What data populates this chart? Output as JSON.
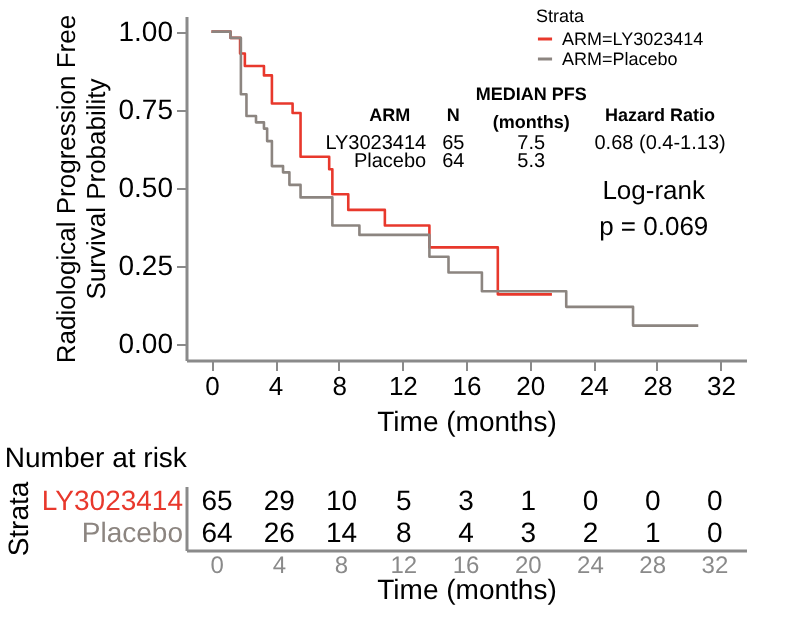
{
  "chart_data": [
    {
      "type": "step",
      "xlabel": "Time (months)",
      "ylabel": "Radiological Progression Free\nSurvival Probability",
      "legend_title": "Strata",
      "legend": "top right",
      "xlim": [
        -1.6,
        33.6
      ],
      "xticks": [
        0,
        4,
        8,
        12,
        16,
        20,
        24,
        28,
        32
      ],
      "ylim": [
        -0.05,
        1.05
      ],
      "yticks": [
        {
          "value": 0,
          "label": "0.00"
        },
        {
          "value": 0.25,
          "label": "0.25"
        },
        {
          "value": 0.5,
          "label": "0.50"
        },
        {
          "value": 0.75,
          "label": "0.75"
        },
        {
          "value": 1,
          "label": "1.00"
        }
      ],
      "series": [
        {
          "name": "ARM=LY3023414",
          "color": "#e8382c",
          "x": [
            0,
            1.2,
            1.8,
            2.1,
            3.3,
            3.8,
            5.1,
            5.6,
            7.4,
            7.6,
            8.6,
            10.9,
            13.7,
            18.0,
            21.4
          ],
          "values": [
            1.0,
            0.98,
            0.93,
            0.89,
            0.86,
            0.77,
            0.74,
            0.6,
            0.56,
            0.48,
            0.43,
            0.38,
            0.31,
            0.16,
            0.16
          ]
        },
        {
          "name": "ARM=Placebo",
          "color": "#8c8580",
          "x": [
            0,
            1.2,
            1.85,
            2.2,
            2.8,
            3.3,
            3.5,
            3.8,
            4.5,
            4.9,
            5.6,
            7.6,
            9.3,
            13.7,
            14.9,
            17.0,
            22.3,
            26.5,
            30.6
          ],
          "values": [
            1.0,
            0.98,
            0.8,
            0.73,
            0.71,
            0.69,
            0.65,
            0.57,
            0.55,
            0.51,
            0.47,
            0.38,
            0.35,
            0.28,
            0.23,
            0.17,
            0.12,
            0.06,
            0.06
          ]
        }
      ],
      "annotations": [
        "ARM",
        "N",
        "MEDIAN PFS\n(months)",
        "Hazard Ratio",
        "LY3023414",
        "65",
        "7.5",
        "0.68 (0.4-1.13)",
        "Placebo",
        "64",
        "5.3",
        "Log-rank\np = 0.069"
      ]
    },
    {
      "type": "heatmap",
      "title": "Number at risk",
      "xlabel": "Time (months)",
      "ylabel": "Strata",
      "categories": [
        "0",
        "4",
        "8",
        "12",
        "16",
        "20",
        "24",
        "28",
        "32"
      ],
      "y_categories": [
        "LY3023414",
        "Placebo"
      ],
      "data_labels": true,
      "cells": [
        [
          65,
          29,
          10,
          5,
          3,
          1,
          0,
          0,
          0
        ],
        [
          64,
          26,
          14,
          8,
          4,
          3,
          2,
          1,
          0
        ]
      ]
    }
  ]
}
